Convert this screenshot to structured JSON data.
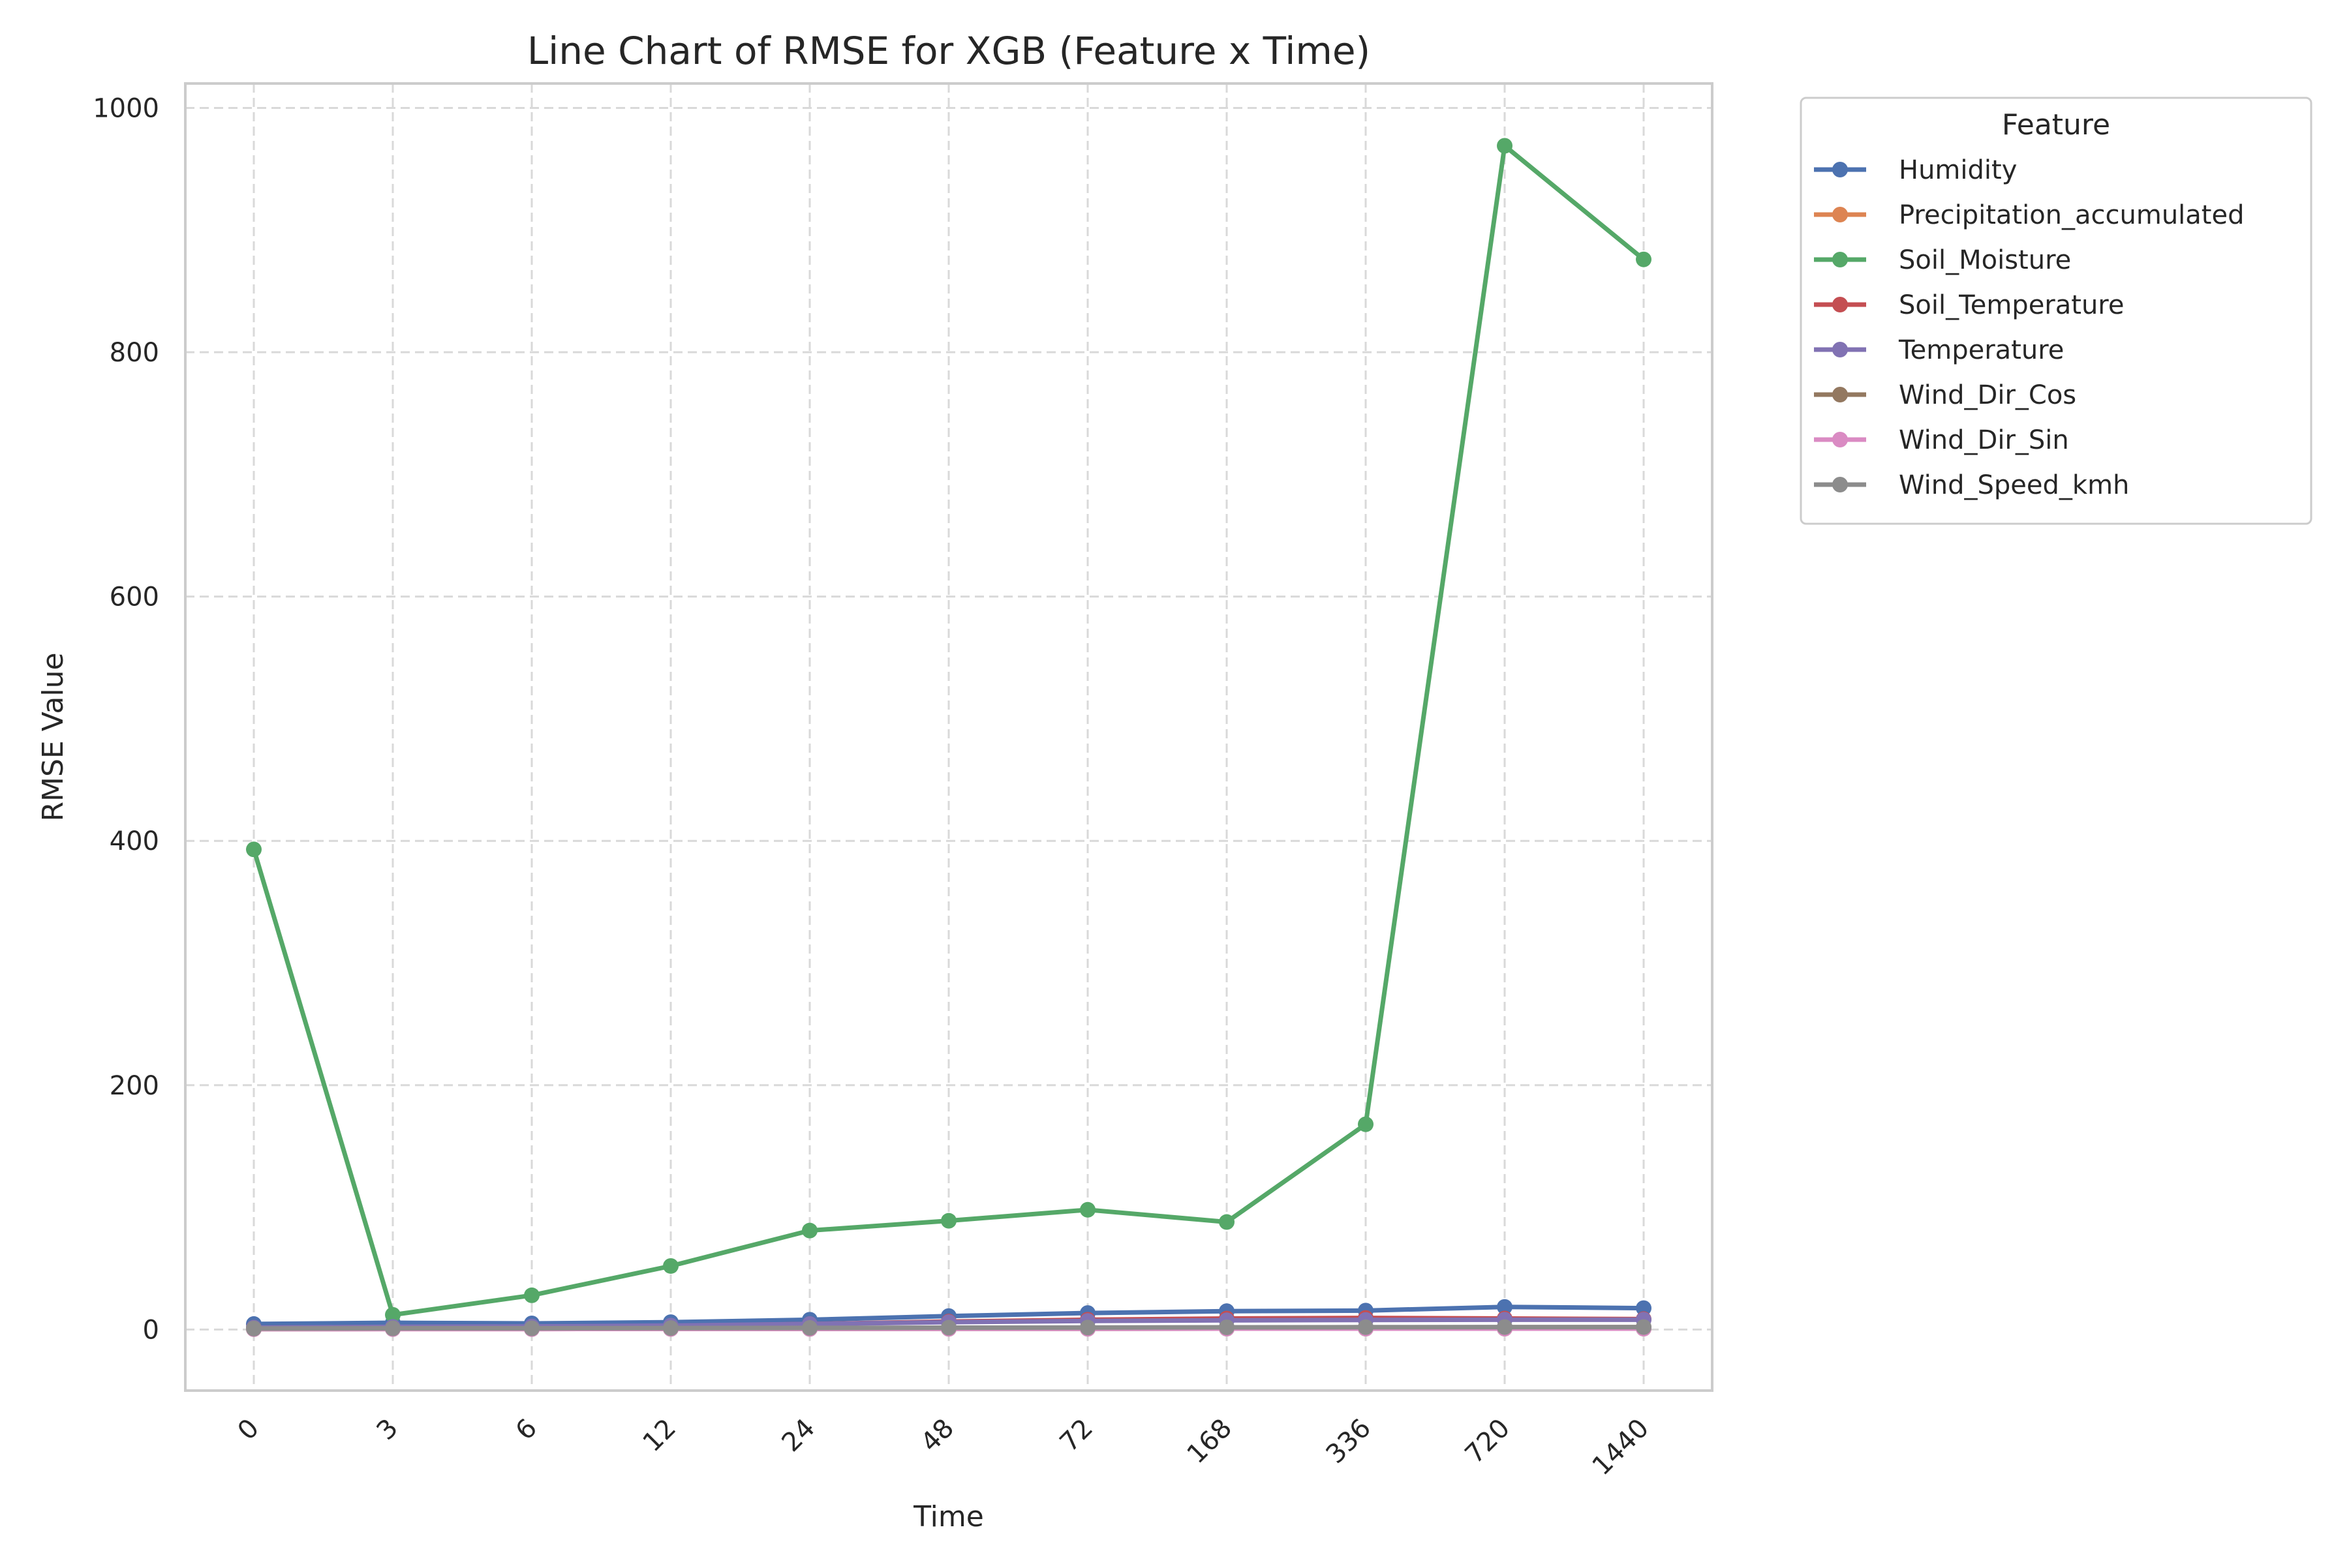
{
  "chart_data": {
    "type": "line",
    "title": "Line Chart of RMSE for XGB (Feature x Time)",
    "xlabel": "Time",
    "ylabel": "RMSE Value",
    "categories": [
      "0",
      "3",
      "6",
      "12",
      "24",
      "48",
      "72",
      "168",
      "336",
      "720",
      "1440"
    ],
    "ylim": [
      -50,
      1020
    ],
    "yticks": [
      0,
      200,
      400,
      600,
      800,
      1000
    ],
    "grid": true,
    "legend": {
      "title": "Feature",
      "placement": "outside-top-right"
    },
    "series": [
      {
        "name": "Humidity",
        "color": "#4c72b0",
        "values": [
          4.5,
          5.5,
          5.0,
          6.0,
          8.0,
          11.0,
          13.5,
          15.0,
          15.5,
          18.5,
          17.5
        ]
      },
      {
        "name": "Precipitation_accumulated",
        "color": "#dd8452",
        "values": [
          0.5,
          0.6,
          0.6,
          0.7,
          0.8,
          1.0,
          1.2,
          1.5,
          1.6,
          1.8,
          1.9
        ]
      },
      {
        "name": "Soil_Moisture",
        "color": "#55a868",
        "values": [
          393,
          12,
          28,
          52,
          81,
          89,
          98,
          88,
          168,
          969,
          876
        ]
      },
      {
        "name": "Soil_Temperature",
        "color": "#c44e52",
        "values": [
          1.5,
          2.0,
          2.2,
          3.0,
          4.5,
          6.5,
          8.0,
          9.0,
          9.5,
          9.0,
          8.5
        ]
      },
      {
        "name": "Temperature",
        "color": "#8172b3",
        "values": [
          1.5,
          2.2,
          2.5,
          3.2,
          4.5,
          6.0,
          7.0,
          7.5,
          7.8,
          8.0,
          8.0
        ]
      },
      {
        "name": "Wind_Dir_Cos",
        "color": "#937860",
        "values": [
          0.3,
          0.4,
          0.4,
          0.5,
          0.5,
          0.6,
          0.6,
          0.7,
          0.7,
          0.7,
          0.7
        ]
      },
      {
        "name": "Wind_Dir_Sin",
        "color": "#da8bc3",
        "values": [
          0.3,
          0.4,
          0.4,
          0.5,
          0.5,
          0.6,
          0.6,
          0.7,
          0.7,
          0.7,
          0.7
        ]
      },
      {
        "name": "Wind_Speed_kmh",
        "color": "#8c8c8c",
        "values": [
          0.8,
          1.0,
          1.0,
          1.2,
          1.3,
          1.5,
          1.6,
          1.8,
          1.9,
          2.0,
          2.0
        ]
      }
    ]
  }
}
